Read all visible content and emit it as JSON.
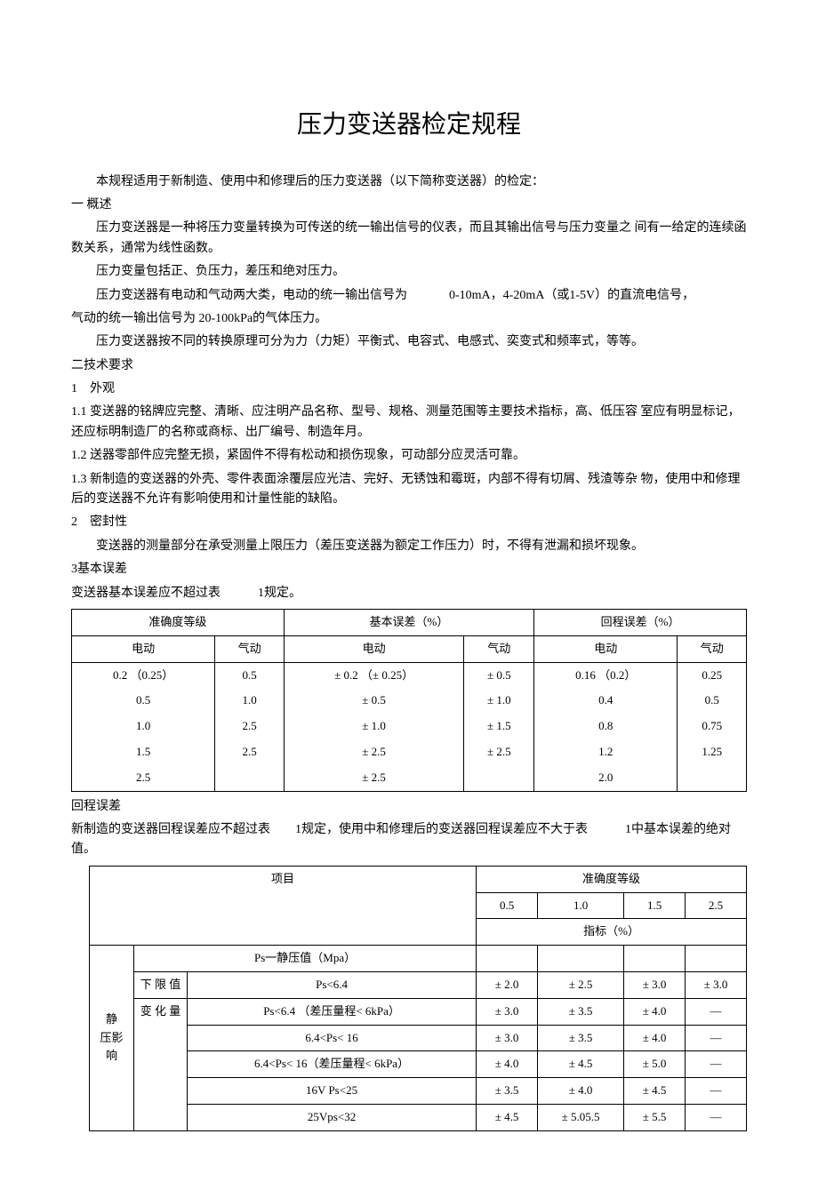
{
  "title": "压力变送器检定规程",
  "intro": "本规程适用于新制造、使用中和修理后的压力变送器（以下简称变送器）的检定：",
  "s1_head": "一 概述",
  "s1_p1": "压力变送器是一种将压力变量转换为可传送的统一输出信号的仪表，而且其输出信号与压力变量之 间有一给定的连续函数关系，通常为线性函数。",
  "s1_p2": "压力变量包括正、负压力，差压和绝对压力。",
  "s1_p3a": "压力变送器有电动和气动两大类，电动的统一输出信号为",
  "s1_p3b": "0-10mA，4-20mA（或1-5V）的直流电信号，",
  "s1_p3c": "气动的统一输出信号为 20-100kPa的气体压力。",
  "s1_p4": "压力变送器按不同的转换原理可分为力（力矩）平衡式、电容式、电感式、奕变式和频率式，等等。",
  "s2_head": "二技术要求",
  "s2_1_head": "1　外观",
  "s2_1_1": "1.1 变送器的铭牌应完整、清晰、应注明产品名称、型号、规格、测量范围等主要技术指标，高、低压容 室应有明显标记，还应标明制造厂的名称或商标、出厂编号、制造年月。",
  "s2_1_2": "1.2 送器零部件应完整无损，紧固件不得有松动和损伤现象，可动部分应灵活可靠。",
  "s2_1_3": "1.3 新制造的变送器的外壳、零件表面涂覆层应光洁、完好、无锈蚀和霉斑，内部不得有切屑、残渣等杂 物，使用中和修理后的变送器不允许有影响使用和计量性能的缺陷。",
  "s2_2_head": "2　密封性",
  "s2_2_p": "变送器的测量部分在承受测量上限压力（差压变送器为额定工作压力）时，不得有泄漏和损坏现象。",
  "s2_3_head": "3基本误差",
  "s2_3_p": "变送器基本误差应不超过表　　　1规定。",
  "t1": {
    "h1": "准确度等级",
    "h2": "基本误差（%）",
    "h3": "回程误差（%）",
    "sh_dian": "电动",
    "sh_qi": "气动",
    "rows": [
      [
        "0.2 （0.25）",
        "0.5",
        "± 0.2 （± 0.25）",
        "± 0.5",
        "0.16 （0.2）",
        "0.25"
      ],
      [
        "0.5",
        "1.0",
        "± 0.5",
        "± 1.0",
        "0.4",
        "0.5"
      ],
      [
        "1.0",
        "2.5",
        "± 1.0",
        "± 1.5",
        "0.8",
        "0.75"
      ],
      [
        "1.5",
        "2.5",
        "± 2.5",
        "± 2.5",
        "1.2",
        "1.25"
      ],
      [
        "2.5",
        "",
        "± 2.5",
        "",
        "2.0",
        ""
      ]
    ]
  },
  "hc_head": "回程误差",
  "hc_p": "新制造的变送器回程误差应不超过表　　1规定，使用中和修理后的变送器回程误差应不大于表　　　1中基本误差的绝对值。",
  "t2": {
    "h_item": "项目",
    "h_level": "准确度等级",
    "levels": [
      "0.5",
      "1.0",
      "1.5",
      "2.5"
    ],
    "h_metric": "指标（%）",
    "lbl_static": "静　压影　响",
    "lbl_ps": "Ps一静压值（Mpa）",
    "lbl_lower": "下 限 值",
    "lbl_change": "变 化 量",
    "rows": [
      {
        "item": "Ps<6.4",
        "vals": [
          "± 2.0",
          "± 2.5",
          "± 3.0",
          "± 3.0"
        ]
      },
      {
        "item": "Ps<6.4 （差压量程< 6kPa）",
        "vals": [
          "± 3.0",
          "± 3.5",
          "± 4.0",
          "—"
        ]
      },
      {
        "item": "6.4<Ps< 16",
        "vals": [
          "± 3.0",
          "± 3.5",
          "± 4.0",
          "—"
        ]
      },
      {
        "item": "6.4<Ps< 16（差压量程< 6kPa）",
        "vals": [
          "± 4.0",
          "± 4.5",
          "± 5.0",
          "—"
        ]
      },
      {
        "item": "16V Ps<25",
        "vals": [
          "± 3.5",
          "± 4.0",
          "± 4.5",
          "—"
        ]
      },
      {
        "item": "25Vps<32",
        "vals": [
          "± 4.5",
          "± 5.05.5",
          "± 5.5",
          "—"
        ]
      }
    ]
  }
}
